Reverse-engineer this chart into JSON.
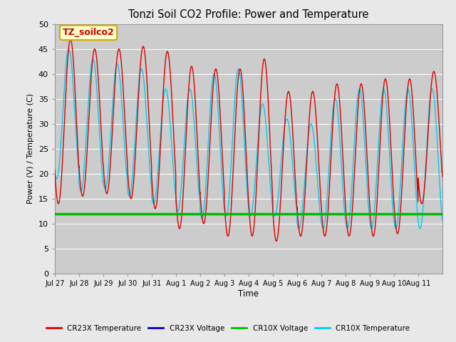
{
  "title": "Tonzi Soil CO2 Profile: Power and Temperature",
  "ylabel": "Power (V) / Temperature (C)",
  "xlabel": "Time",
  "ylim": [
    0,
    50
  ],
  "fig_bg_color": "#e8e8e8",
  "plot_bg_color": "#cccccc",
  "annotation_text": "TZ_soilco2",
  "annotation_color": "#cc0000",
  "annotation_bg": "#ffffcc",
  "annotation_border": "#ccaa00",
  "cr23x_temp_color": "#dd0000",
  "cr23x_volt_color": "#0000cc",
  "cr10x_volt_color": "#00bb00",
  "cr10x_temp_color": "#00ccee",
  "voltage_value": 11.9,
  "n_days": 16,
  "xtick_labels": [
    "Jul 27",
    "Jul 28",
    "Jul 29",
    "Jul 30",
    "Jul 31",
    "Aug 1",
    "Aug 2",
    "Aug 3",
    "Aug 4",
    "Aug 5",
    "Aug 6",
    "Aug 7",
    "Aug 8",
    "Aug 9",
    "Aug 10",
    "Aug 11"
  ],
  "cr23x_peaks": [
    47.0,
    45.0,
    45.0,
    45.5,
    44.5,
    41.5,
    41.0,
    41.0,
    43.0,
    36.5,
    36.5,
    38.0,
    38.0,
    39.0,
    39.0,
    40.5
  ],
  "cr23x_troughs": [
    14.0,
    15.5,
    16.0,
    15.0,
    13.0,
    9.0,
    10.0,
    7.5,
    7.5,
    6.5,
    7.5,
    7.5,
    7.5,
    7.5,
    8.0,
    14.0
  ],
  "cr10x_peaks": [
    45.0,
    43.0,
    42.0,
    41.0,
    37.0,
    37.0,
    40.0,
    41.0,
    34.0,
    31.0,
    30.0,
    35.0,
    37.0,
    37.0,
    37.0,
    37.0
  ],
  "cr10x_troughs": [
    19.0,
    16.5,
    17.0,
    15.5,
    14.0,
    12.5,
    11.0,
    11.5,
    11.5,
    11.5,
    9.0,
    9.0,
    9.0,
    9.0,
    9.0,
    9.0
  ],
  "grid_color": "#bbbbbb",
  "legend_labels": [
    "CR23X Temperature",
    "CR23X Voltage",
    "CR10X Voltage",
    "CR10X Temperature"
  ]
}
